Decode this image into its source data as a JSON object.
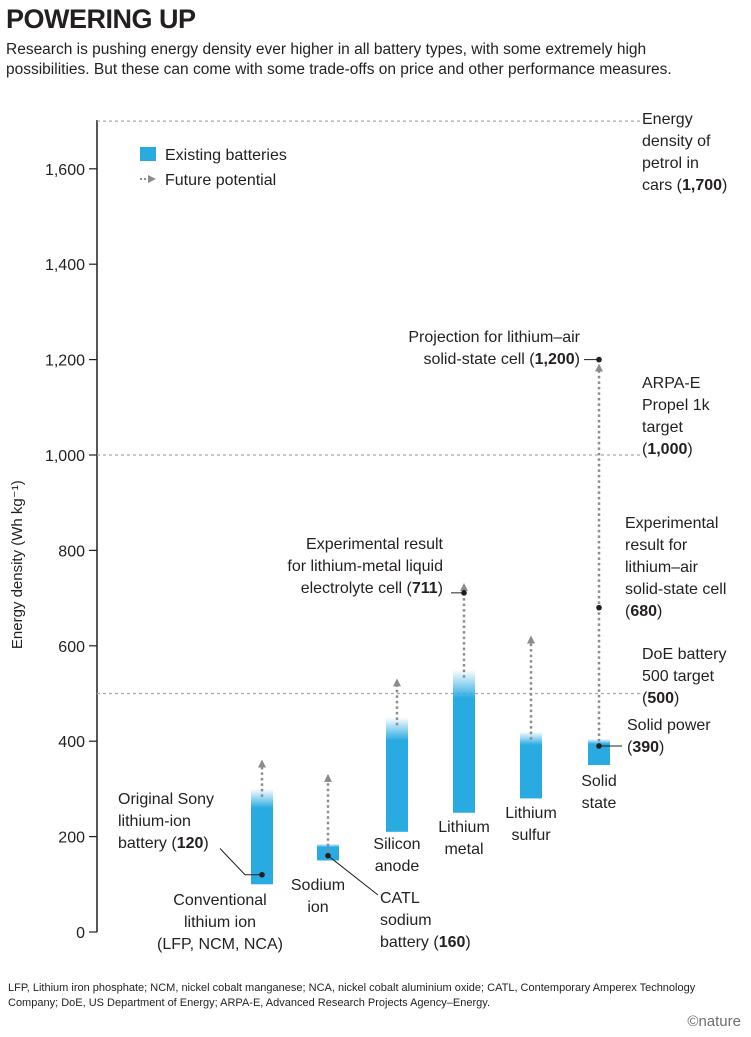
{
  "title": "POWERING UP",
  "subtitle": "Research is pushing energy density ever higher in all battery types, with some extremely high possibilities. But these can come with some trade-offs on price and other performance measures.",
  "footnote": "LFP, Lithium iron phosphate; NCM, nickel cobalt manganese; NCA, nickel cobalt aluminium oxide; CATL, Contemporary Amperex Technology Company; DoE, US Department of Energy; ARPA-E, Advanced Research Projects Agency–Energy.",
  "credit": "©nature",
  "colors": {
    "existing": "#29abe2",
    "future": "#8a8c8e",
    "reference_line": "#a7a9ac",
    "text": "#231f20"
  },
  "chart_data": {
    "type": "bar",
    "ylabel": "Energy density (Wh kg⁻¹)",
    "ylim": [
      0,
      1700
    ],
    "yticks": [
      0,
      200,
      400,
      600,
      800,
      1000,
      1200,
      1400,
      1600
    ],
    "ytick_labels": [
      "0",
      "200",
      "400",
      "600",
      "800",
      "1,000",
      "1,200",
      "1,400",
      "1,600"
    ],
    "legend": {
      "placement": "top-left",
      "existing": "Existing batteries",
      "future": "Future potential"
    },
    "categories": [
      {
        "label": [
          "Conventional",
          "lithium ion",
          "(LFP, NCM, NCA)"
        ],
        "existing_range": [
          100,
          300
        ],
        "future_potential": 370
      },
      {
        "label": [
          "Sodium",
          "ion"
        ],
        "existing_range": [
          150,
          185
        ],
        "future_potential": 340
      },
      {
        "label": [
          "Silicon",
          "anode"
        ],
        "existing_range": [
          210,
          450
        ],
        "future_potential": 540
      },
      {
        "label": [
          "Lithium",
          "metal"
        ],
        "existing_range": [
          250,
          550
        ],
        "future_potential": 740
      },
      {
        "label": [
          "Lithium",
          "sulfur"
        ],
        "existing_range": [
          280,
          420
        ],
        "future_potential": 630
      },
      {
        "label": [
          "Solid",
          "state"
        ],
        "existing_range": [
          350,
          405
        ],
        "future_potential": 1200
      }
    ],
    "reference_lines": [
      {
        "value": 1700,
        "label": [
          "Energy",
          "density of",
          "petrol in",
          "cars (1,700)"
        ]
      },
      {
        "value": 1000,
        "label": [
          "ARPA-E",
          "Propel 1k",
          "target",
          "(1,000)"
        ]
      },
      {
        "value": 500,
        "label": [
          "DoE battery",
          "500 target",
          "(500)"
        ]
      }
    ],
    "annotations": [
      {
        "value": 120,
        "label": [
          "Original Sony",
          "lithium-ion",
          "battery (120)"
        ]
      },
      {
        "value": 160,
        "label": [
          "CATL",
          "sodium",
          "battery (160)"
        ]
      },
      {
        "value": 711,
        "label": [
          "Experimental result",
          "for lithium-metal liquid",
          "electrolyte cell (711)"
        ]
      },
      {
        "value": 1200,
        "label": [
          "Projection for lithium–air",
          "solid-state cell (1,200)"
        ]
      },
      {
        "value": 680,
        "label": [
          "Experimental",
          "result for",
          "lithium–air",
          "solid-state cell",
          "(680)"
        ]
      },
      {
        "value": 390,
        "label": [
          "Solid power",
          "(390)"
        ]
      }
    ]
  }
}
